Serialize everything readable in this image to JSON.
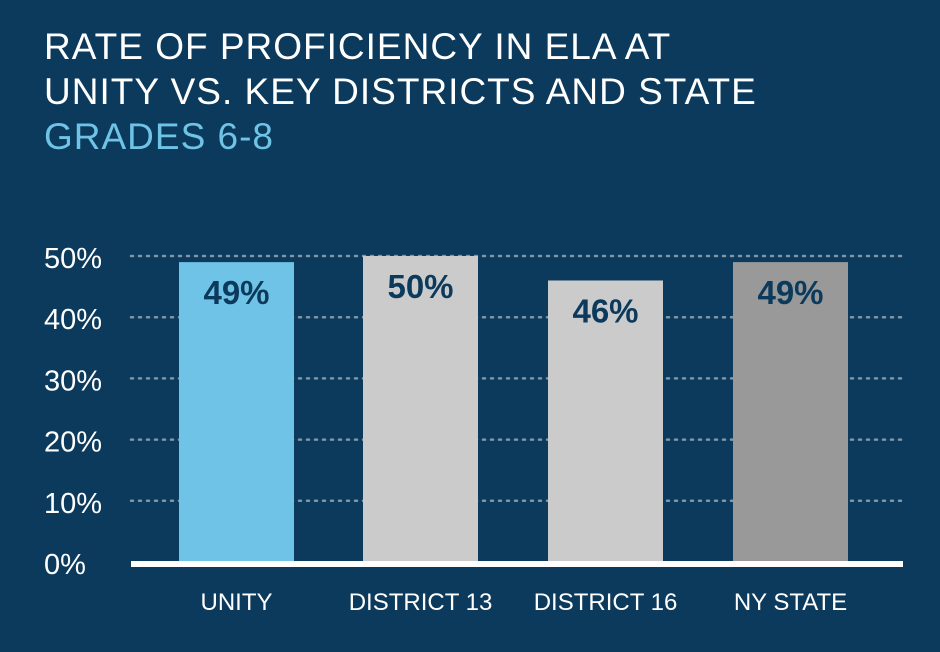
{
  "chart_data": {
    "type": "bar",
    "title": "RATE OF PROFICIENCY IN ELA AT UNITY VS. KEY DISTRICTS AND STATE",
    "title_lines": [
      "RATE OF PROFICIENCY IN ELA AT",
      "UNITY VS. KEY DISTRICTS AND STATE"
    ],
    "subtitle": "GRADES 6-8",
    "categories": [
      "UNITY",
      "DISTRICT 13",
      "DISTRICT 16",
      "NY STATE"
    ],
    "values": [
      49,
      50,
      46,
      49
    ],
    "data_labels": [
      "49%",
      "50%",
      "46%",
      "49%"
    ],
    "colors": [
      "#6fc3e6",
      "#cbcbcb",
      "#cbcbcb",
      "#999999"
    ],
    "ylim": [
      0,
      50
    ],
    "yticks": [
      0,
      10,
      20,
      30,
      40,
      50
    ],
    "ytick_labels": [
      "0%",
      "10%",
      "20%",
      "30%",
      "40%",
      "50%"
    ],
    "xlabel": "",
    "ylabel": "",
    "grid": true,
    "background": "#0b3a5c",
    "label_color": "#0b3a5c"
  }
}
